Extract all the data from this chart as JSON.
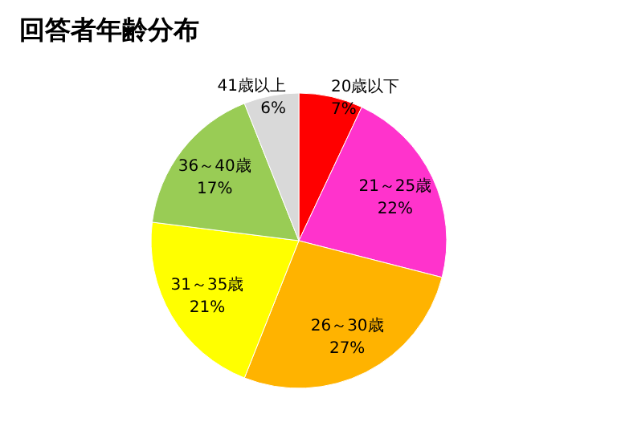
{
  "chart_data": {
    "type": "pie",
    "title": "回答者年齢分布",
    "categories": [
      "20歳以下",
      "21～25歳",
      "26～30歳",
      "31～35歳",
      "36～40歳",
      "41歳以上"
    ],
    "values": [
      7,
      22,
      27,
      21,
      17,
      6
    ],
    "value_labels": [
      "7%",
      "22%",
      "27%",
      "21%",
      "17%",
      "6%"
    ],
    "colors": [
      "#ff0000",
      "#ff33cc",
      "#ffb300",
      "#ffff00",
      "#99cc55",
      "#d9d9d9"
    ]
  }
}
